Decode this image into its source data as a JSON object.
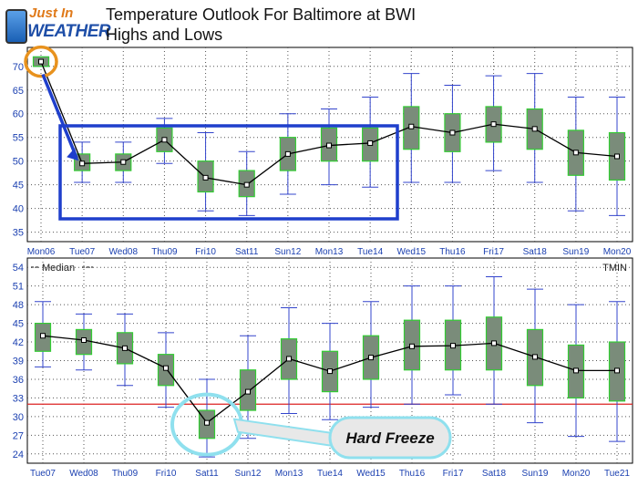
{
  "logo": {
    "line1": "Just In",
    "line2": "WEATHER"
  },
  "title": {
    "line1": "Temperature Outlook For Baltimore at BWI",
    "line2": "Highs and Lows"
  },
  "chart_data": [
    {
      "type": "box",
      "name": "highs",
      "categories": [
        "Mon06",
        "Tue07",
        "Wed08",
        "Thu09",
        "Fri10",
        "Sat11",
        "Sun12",
        "Mon13",
        "Tue14",
        "Wed15",
        "Thu16",
        "Fri17",
        "Sat18",
        "Sun19",
        "Mon20"
      ],
      "median": [
        71,
        49.5,
        49.8,
        54.5,
        46.5,
        45,
        51.5,
        53.3,
        53.8,
        57.3,
        56,
        57.8,
        56.8,
        51.8,
        51
      ],
      "q1": [
        70,
        48,
        48,
        52,
        43.5,
        42.5,
        48,
        50,
        50,
        52.5,
        52,
        54,
        52.5,
        47,
        46
      ],
      "q3": [
        72,
        51.5,
        51.5,
        57,
        50,
        48,
        55,
        57,
        57,
        61.5,
        60,
        61.5,
        61,
        56.5,
        56
      ],
      "min": [
        70,
        45.5,
        45.5,
        49.5,
        39.5,
        38.5,
        43,
        45,
        44.5,
        45.5,
        45.5,
        48,
        45.5,
        39.5,
        38.5
      ],
      "max": [
        72,
        54,
        54,
        59,
        56,
        52,
        60,
        61,
        63.5,
        68.5,
        66,
        68,
        68.5,
        63.5,
        63.5
      ],
      "ylim": [
        33,
        74
      ],
      "yticks": [
        35,
        40,
        45,
        50,
        55,
        60,
        65,
        70
      ],
      "grid": true
    },
    {
      "type": "box",
      "name": "lows",
      "categories": [
        "Tue07",
        "Wed08",
        "Thu09",
        "Fri10",
        "Sat11",
        "Sun12",
        "Mon13",
        "Tue14",
        "Wed15",
        "Thu16",
        "Fri17",
        "Sat18",
        "Sun19",
        "Mon20",
        "Tue21"
      ],
      "median": [
        43,
        42.3,
        41,
        37.8,
        29,
        34,
        39.3,
        37.3,
        39.5,
        41.3,
        41.4,
        41.8,
        39.6,
        37.4,
        37.4
      ],
      "q1": [
        40.5,
        40,
        38.5,
        35,
        26.5,
        31,
        36,
        34,
        36,
        37.5,
        37.5,
        37.5,
        35,
        33,
        32.5
      ],
      "q3": [
        45,
        44,
        43.5,
        40,
        31,
        37.5,
        42.5,
        40.5,
        43,
        45.5,
        45.5,
        46,
        44,
        41.5,
        42
      ],
      "min": [
        38,
        37.5,
        35,
        31.5,
        23.5,
        26.5,
        30.5,
        29.5,
        31.5,
        32,
        33.5,
        32,
        29,
        26.8,
        26
      ],
      "max": [
        48.5,
        46.5,
        46.5,
        43.5,
        36,
        43,
        47.5,
        45,
        48.5,
        51,
        51,
        52.5,
        50.5,
        48,
        48.5
      ],
      "ylim": [
        22.5,
        55.5
      ],
      "yticks": [
        24,
        27,
        30,
        33,
        36,
        39,
        42,
        45,
        48,
        51,
        54
      ],
      "reference_line": 32,
      "legend_label": "Median",
      "series_label": "TMIN",
      "grid": true
    }
  ],
  "annotation": {
    "hard_freeze": "Hard Freeze"
  },
  "colors": {
    "box_fill": "#7a8c7a",
    "box_stroke": "#33cc33",
    "whisker": "#3344cc",
    "median_line": "#000000",
    "ref_line": "#dd2222",
    "highlight_box": "#1f3fcc",
    "orange_circle": "#e8921e",
    "cyan_circle": "#8fe0ee"
  }
}
